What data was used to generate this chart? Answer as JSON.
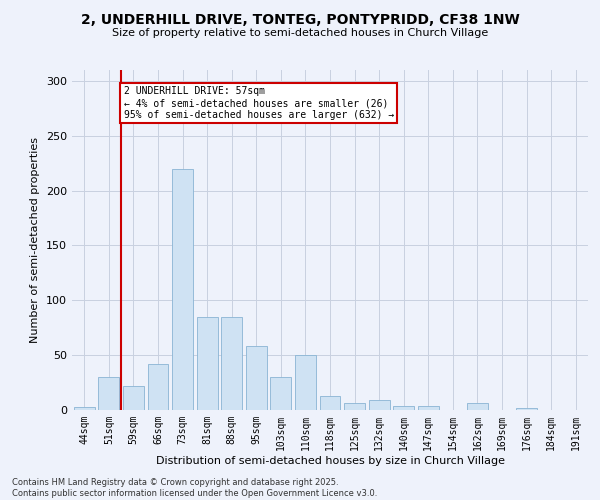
{
  "title_line1": "2, UNDERHILL DRIVE, TONTEG, PONTYPRIDD, CF38 1NW",
  "title_line2": "Size of property relative to semi-detached houses in Church Village",
  "xlabel": "Distribution of semi-detached houses by size in Church Village",
  "ylabel": "Number of semi-detached properties",
  "categories": [
    "44sqm",
    "51sqm",
    "59sqm",
    "66sqm",
    "73sqm",
    "81sqm",
    "88sqm",
    "95sqm",
    "103sqm",
    "110sqm",
    "118sqm",
    "125sqm",
    "132sqm",
    "140sqm",
    "147sqm",
    "154sqm",
    "162sqm",
    "169sqm",
    "176sqm",
    "184sqm",
    "191sqm"
  ],
  "values": [
    3,
    30,
    22,
    42,
    220,
    85,
    85,
    58,
    30,
    50,
    13,
    6,
    9,
    4,
    4,
    0,
    6,
    0,
    2,
    0,
    0
  ],
  "bar_color": "#cfe2f3",
  "bar_edge_color": "#8ab4d4",
  "grid_color": "#c8d0e0",
  "background_color": "#eef2fb",
  "vline_color": "#cc0000",
  "vline_x": 1.5,
  "annotation_title": "2 UNDERHILL DRIVE: 57sqm",
  "annotation_line1": "← 4% of semi-detached houses are smaller (26)",
  "annotation_line2": "95% of semi-detached houses are larger (632) →",
  "annotation_box_color": "#ffffff",
  "annotation_box_edge": "#cc0000",
  "footer_line1": "Contains HM Land Registry data © Crown copyright and database right 2025.",
  "footer_line2": "Contains public sector information licensed under the Open Government Licence v3.0.",
  "ylim": [
    0,
    310
  ],
  "yticks": [
    0,
    50,
    100,
    150,
    200,
    250,
    300
  ]
}
